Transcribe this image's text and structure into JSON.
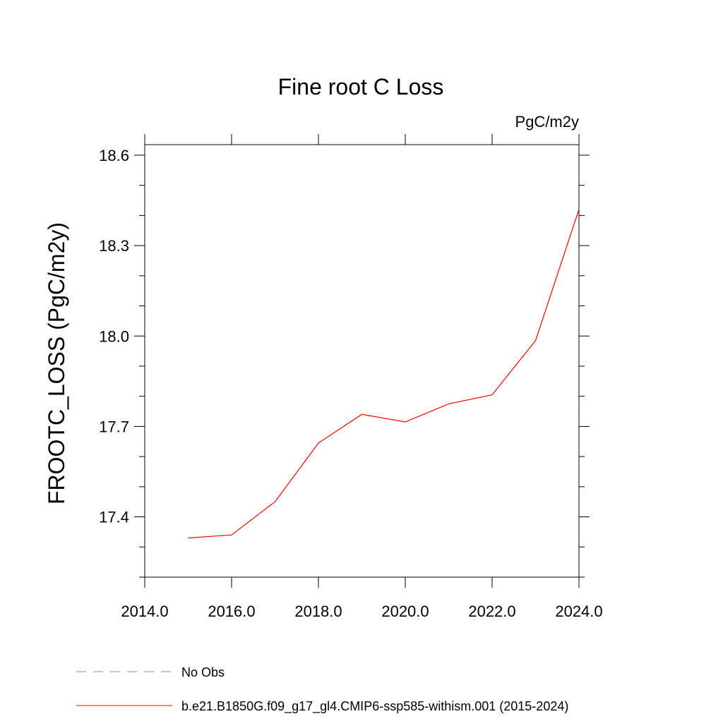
{
  "chart_data": {
    "type": "line",
    "title": "Fine root C Loss",
    "units_label": "PgC/m2y",
    "ylabel": "FROOTC_LOSS  (PgC/m2y)",
    "xlabel": "",
    "xlim": [
      2014,
      2024
    ],
    "ylim": [
      17.2,
      18.635
    ],
    "x_ticks": [
      2014,
      2016,
      2018,
      2020,
      2022,
      2024
    ],
    "x_tick_labels": [
      "2014.0",
      "2016.0",
      "2018.0",
      "2020.0",
      "2022.0",
      "2024.0"
    ],
    "x_minor_ticks": [],
    "y_ticks": [
      17.4,
      17.7,
      18.0,
      18.3,
      18.6
    ],
    "y_tick_labels": [
      "17.4",
      "17.7",
      "18.0",
      "18.3",
      "18.6"
    ],
    "y_minor_ticks": [
      17.2,
      17.3,
      17.5,
      17.6,
      17.8,
      17.9,
      18.1,
      18.2,
      18.4,
      18.5
    ],
    "grid": false,
    "series": [
      {
        "name": "b.e21.B1850G.f09_g17_gl4.CMIP6-ssp585-withism.001 (2015-2024)",
        "color": "#ff0000",
        "dash": "solid",
        "x": [
          2015,
          2016,
          2017,
          2018,
          2019,
          2020,
          2021,
          2022,
          2023,
          2024
        ],
        "y": [
          17.33,
          17.34,
          17.45,
          17.645,
          17.74,
          17.715,
          17.775,
          17.805,
          17.985,
          18.42
        ]
      }
    ],
    "legend": {
      "placement": "bottom-left",
      "entries": [
        {
          "label": "No Obs",
          "color": "#8080c0",
          "dash": "dashed"
        },
        {
          "label": "b.e21.B1850G.f09_g17_gl4.CMIP6-ssp585-withism.001 (2015-2024)",
          "color": "#ff0000",
          "dash": "solid"
        }
      ]
    }
  }
}
